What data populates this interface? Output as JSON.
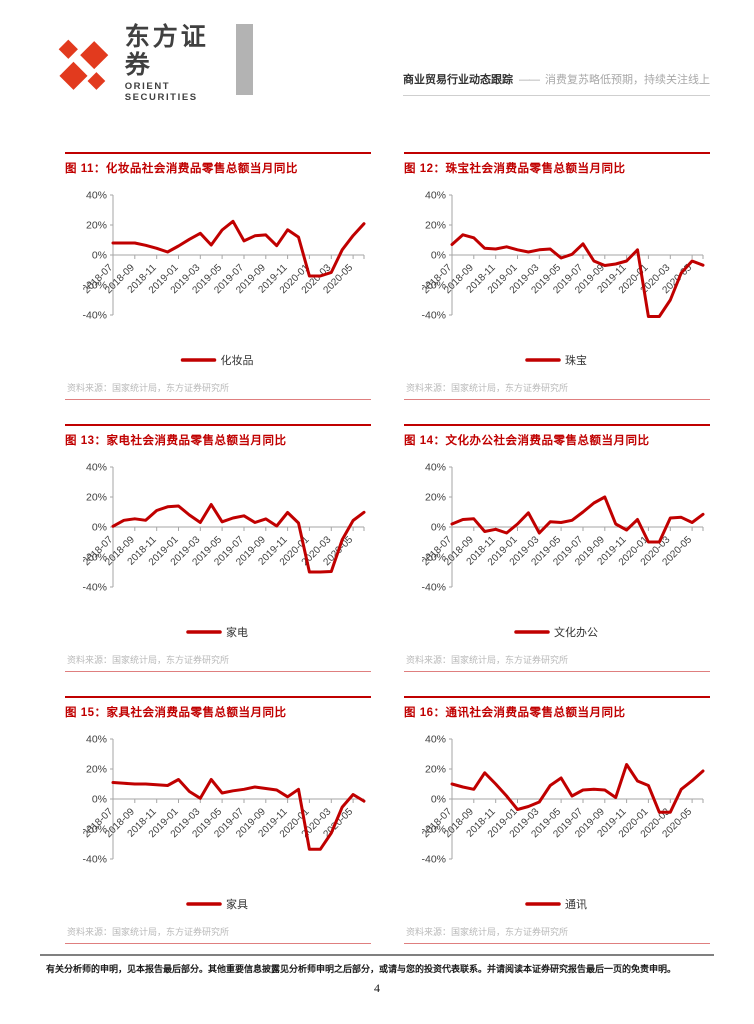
{
  "header": {
    "logo_cn": "东方证券",
    "logo_en": "ORIENT SECURITIES",
    "report_type": "商业贸易行业动态跟踪",
    "dash": "——",
    "subtitle": "消费复苏略低预期，持续关注线上"
  },
  "colors": {
    "accent_red": "#c00000",
    "logo_red": "#e23a1e",
    "axis_gray": "#a6a6a6",
    "source_gray": "#b9b9b9"
  },
  "axis": {
    "y_ticks": [
      "40%",
      "20%",
      "0%",
      "-20%",
      "-40%"
    ],
    "y_min": -40,
    "y_max": 40,
    "x_ticks": [
      "2018-07",
      "2018-09",
      "2018-11",
      "2019-01",
      "2019-03",
      "2019-05",
      "2019-07",
      "2019-09",
      "2019-11",
      "2020-01",
      "2020-03",
      "2020-05"
    ],
    "x_months": [
      "2018-07",
      "2018-08",
      "2018-09",
      "2018-10",
      "2018-11",
      "2018-12",
      "2019-01",
      "2019-02",
      "2019-03",
      "2019-04",
      "2019-05",
      "2019-06",
      "2019-07",
      "2019-08",
      "2019-09",
      "2019-10",
      "2019-11",
      "2019-12",
      "2020-01",
      "2020-02",
      "2020-03",
      "2020-04",
      "2020-05",
      "2020-06"
    ]
  },
  "chart_data": [
    {
      "type": "line",
      "title": "图 11：化妆品社会消费品零售总额当月同比",
      "legend": "化妆品",
      "source": "资料来源：国家统计局，东方证券研究所",
      "ylim": [
        -40,
        40
      ],
      "values": [
        8,
        8,
        8,
        6.5,
        4.5,
        2,
        6,
        10.5,
        14.5,
        6.7,
        16.7,
        22.5,
        9.4,
        12.8,
        13.4,
        6.2,
        16.8,
        11.9,
        -14,
        -14,
        -11.6,
        3.5,
        12.9,
        20.9
      ]
    },
    {
      "type": "line",
      "title": "图 12：珠宝社会消费品零售总额当月同比",
      "legend": "珠宝",
      "source": "资料来源：国家统计局，东方证券研究所",
      "ylim": [
        -40,
        40
      ],
      "values": [
        7,
        13.5,
        11.5,
        4.5,
        4,
        5.5,
        3.5,
        2,
        3.5,
        4,
        -2,
        0.5,
        7.5,
        -4,
        -7,
        -6,
        -4,
        3.5,
        -41,
        -41,
        -30,
        -12,
        -4,
        -6.8
      ]
    },
    {
      "type": "line",
      "title": "图 13：家电社会消费品零售总额当月同比",
      "legend": "家电",
      "source": "资料来源：国家统计局，东方证券研究所",
      "ylim": [
        -40,
        40
      ],
      "values": [
        0.5,
        4.5,
        5.5,
        4.5,
        11,
        13.5,
        14,
        8,
        3,
        15,
        3.5,
        6,
        7.5,
        3,
        5.4,
        0.7,
        9.7,
        2.7,
        -30,
        -30,
        -29.7,
        -8.5,
        4.3,
        9.8
      ]
    },
    {
      "type": "line",
      "title": "图 14：文化办公社会消费品零售总额当月同比",
      "legend": "文化办公",
      "source": "资料来源：国家统计局，东方证券研究所",
      "ylim": [
        -40,
        40
      ],
      "values": [
        2,
        5,
        5.5,
        -3,
        -1.5,
        -4,
        2,
        9.5,
        -4,
        3.5,
        3,
        4.5,
        10,
        16,
        20,
        2,
        -2,
        5,
        -10,
        -10,
        6,
        6.5,
        3,
        8.5
      ]
    },
    {
      "type": "line",
      "title": "图 15：家具社会消费品零售总额当月同比",
      "legend": "家具",
      "source": "资料来源：国家统计局，东方证券研究所",
      "ylim": [
        -40,
        40
      ],
      "values": [
        11,
        10.5,
        10,
        10,
        9.5,
        9,
        13,
        5,
        0.5,
        13,
        4,
        5.5,
        6.5,
        8,
        7,
        6,
        1.5,
        6.5,
        -33.5,
        -33.5,
        -22.7,
        -5.4,
        3,
        -1.4
      ]
    },
    {
      "type": "line",
      "title": "图 16：通讯社会消费品零售总额当月同比",
      "legend": "通讯",
      "source": "资料来源：国家统计局，东方证券研究所",
      "ylim": [
        -40,
        40
      ],
      "values": [
        10,
        8,
        6.5,
        17.5,
        10,
        2,
        -7,
        -5,
        -2,
        9,
        14,
        2,
        6,
        6.5,
        6,
        1,
        23,
        12,
        9,
        -8.8,
        -8.8,
        6.5,
        12.2,
        18.7
      ]
    }
  ],
  "footer": {
    "disclaimer": "有关分析师的申明，见本报告最后部分。其他重要信息披露见分析师申明之后部分，或请与您的投资代表联系。并请阅读本证券研究报告最后一页的免责申明。",
    "page_number": "4"
  }
}
